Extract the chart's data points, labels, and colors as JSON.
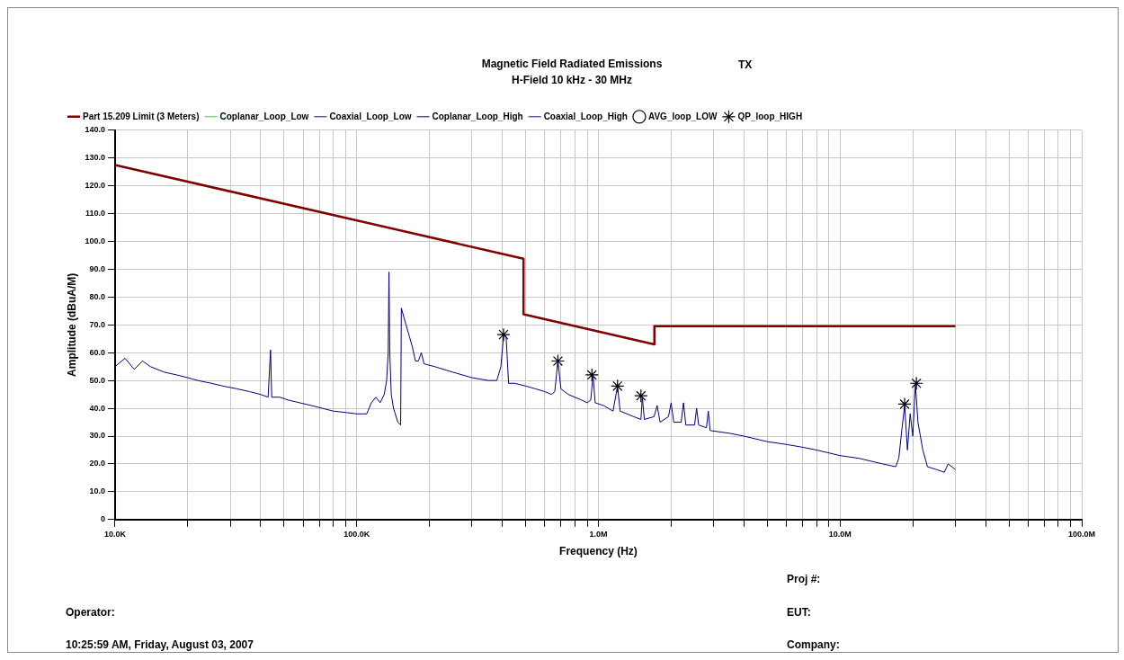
{
  "chart_data": {
    "type": "line",
    "title": "Magnetic Field Radiated Emissions",
    "subtitle": "H-Field 10 kHz - 30 MHz",
    "xlabel": "Frequency (Hz)",
    "ylabel": "Amplitude (dBuA/M)",
    "annotations": [
      "TX",
      "Proj #:",
      "Operator:",
      "EUT:",
      "10:25:59 AM, Friday, August 03, 2007",
      "Company:"
    ],
    "log": "x",
    "grid": true,
    "legend": "top left",
    "marker": "none",
    "line_style": "solid",
    "xlim": [
      10000,
      100000000
    ],
    "ylim": [
      0,
      140
    ],
    "xticks": [
      {
        "value": 10000,
        "label": "10.0K"
      },
      {
        "value": 20000,
        "label": null
      },
      {
        "value": 30000,
        "label": null
      },
      {
        "value": 40000,
        "label": null
      },
      {
        "value": 50000,
        "label": null
      },
      {
        "value": 60000,
        "label": null
      },
      {
        "value": 70000,
        "label": null
      },
      {
        "value": 80000,
        "label": null
      },
      {
        "value": 90000,
        "label": null
      },
      {
        "value": 100000,
        "label": "100.0K"
      },
      {
        "value": 200000,
        "label": null
      },
      {
        "value": 300000,
        "label": null
      },
      {
        "value": 400000,
        "label": null
      },
      {
        "value": 500000,
        "label": null
      },
      {
        "value": 600000,
        "label": null
      },
      {
        "value": 700000,
        "label": null
      },
      {
        "value": 800000,
        "label": null
      },
      {
        "value": 900000,
        "label": null
      },
      {
        "value": 1000000,
        "label": "1.0M"
      },
      {
        "value": 2000000,
        "label": null
      },
      {
        "value": 3000000,
        "label": null
      },
      {
        "value": 4000000,
        "label": null
      },
      {
        "value": 5000000,
        "label": null
      },
      {
        "value": 6000000,
        "label": null
      },
      {
        "value": 7000000,
        "label": null
      },
      {
        "value": 8000000,
        "label": null
      },
      {
        "value": 9000000,
        "label": null
      },
      {
        "value": 10000000,
        "label": "10.0M"
      },
      {
        "value": 20000000,
        "label": null
      },
      {
        "value": 30000000,
        "label": null
      },
      {
        "value": 40000000,
        "label": null
      },
      {
        "value": 50000000,
        "label": null
      },
      {
        "value": 60000000,
        "label": null
      },
      {
        "value": 70000000,
        "label": null
      },
      {
        "value": 80000000,
        "label": null
      },
      {
        "value": 90000000,
        "label": null
      },
      {
        "value": 100000000,
        "label": "100.0M"
      }
    ],
    "yticks": [
      0,
      {
        "value": 10,
        "label": "10.0"
      },
      {
        "value": 20,
        "label": "20.0"
      },
      {
        "value": 30,
        "label": "30.0"
      },
      {
        "value": 40,
        "label": "40.0"
      },
      {
        "value": 50,
        "label": "50.0"
      },
      {
        "value": 60,
        "label": "60.0"
      },
      {
        "value": 70,
        "label": "70.0"
      },
      {
        "value": 80,
        "label": "80.0"
      },
      {
        "value": 90,
        "label": "90.0"
      },
      {
        "value": 100,
        "label": "100.0"
      },
      {
        "value": 110,
        "label": "110.0"
      },
      {
        "value": 120,
        "label": "120.0"
      },
      {
        "value": 130,
        "label": "130.0"
      },
      {
        "value": 140,
        "label": "140.0"
      }
    ],
    "series": [
      {
        "name": "Part 15.209 Limit (3 Meters)",
        "type": "line",
        "color": "#800000",
        "x": [
          10000,
          490000,
          490000,
          1705000,
          1705000,
          30000000
        ],
        "values": [
          127.5,
          93.8,
          73.8,
          63,
          69.5,
          69.5
        ]
      },
      {
        "name": "Coplanar_Loop_Low",
        "type": "line",
        "color": "#00ff00"
      },
      {
        "name": "Coaxial_Loop_Low",
        "type": "line",
        "color": "#0000ff"
      },
      {
        "name": "Coplanar_Loop_High",
        "type": "line",
        "color": "#000080",
        "x": [
          10000,
          11000,
          12000,
          13000,
          14000,
          16000,
          18000,
          20000,
          22000,
          25000,
          28000,
          32000,
          36000,
          40000,
          43000,
          44000,
          44500,
          48000,
          52000,
          58000,
          65000,
          72000,
          80000,
          90000,
          100000,
          110000,
          115000,
          120000,
          125000,
          130000,
          133000,
          135000,
          136000,
          137000,
          139000,
          142000,
          148000,
          152000,
          153000,
          160000,
          165000,
          170000,
          175000,
          180000,
          185000,
          190000,
          210000,
          250000,
          300000,
          350000,
          380000,
          395000,
          405000,
          415000,
          425000,
          450000,
          500000,
          550000,
          600000,
          640000,
          660000,
          680000,
          700000,
          750000,
          850000,
          900000,
          930000,
          950000,
          970000,
          1050000,
          1150000,
          1200000,
          1230000,
          1400000,
          1500000,
          1520000,
          1550000,
          1700000,
          1750000,
          1800000,
          1950000,
          2000000,
          2050000,
          2200000,
          2250000,
          2300000,
          2500000,
          2550000,
          2600000,
          2800000,
          2850000,
          2900000,
          3500000,
          4000000,
          5000000,
          6000000,
          7000000,
          8000000,
          10000000,
          12000000,
          15000000,
          17000000,
          17500000,
          18000000,
          18500000,
          19000000,
          19500000,
          20000000,
          20500000,
          21000000,
          22000000,
          23000000,
          25000000,
          27000000,
          28000000,
          30000000
        ],
        "values": [
          55,
          58,
          54,
          57,
          55,
          53,
          52,
          51,
          50,
          49,
          48,
          47,
          46,
          45,
          44,
          61,
          44,
          44,
          43,
          42,
          41,
          40,
          39,
          38.5,
          38,
          38,
          42,
          44,
          42,
          45,
          50,
          60,
          89,
          60,
          45,
          40,
          35,
          34,
          76,
          70,
          66,
          62,
          57,
          57,
          60,
          56,
          55,
          53,
          51,
          50,
          50,
          55,
          66,
          66,
          49,
          49,
          48,
          47,
          46,
          45,
          46,
          57,
          47,
          45,
          43,
          42,
          43,
          52,
          42,
          41,
          39,
          48,
          39,
          37,
          36,
          44,
          36,
          37,
          41,
          35,
          37,
          42,
          35,
          35,
          42,
          34,
          34,
          40,
          34,
          33,
          39,
          32,
          31,
          30,
          28,
          27,
          26,
          25,
          23,
          22,
          20,
          19,
          22,
          32,
          41,
          25,
          38,
          30,
          49,
          35,
          25,
          19,
          18,
          17,
          20,
          18
        ]
      },
      {
        "name": "Coaxial_Loop_High",
        "type": "line",
        "color": "#0000ff"
      },
      {
        "name": "AVG_loop_LOW",
        "type": "scatter",
        "marker": "circle",
        "color": "#000000"
      },
      {
        "name": "QP_loop_HIGH",
        "type": "scatter",
        "marker": "cross",
        "color": "#000000",
        "x": [
          405000,
          680000,
          940000,
          1200000,
          1500000,
          18500000,
          20700000
        ],
        "values": [
          66.5,
          57,
          52,
          48,
          44.5,
          41.5,
          49
        ]
      }
    ]
  }
}
